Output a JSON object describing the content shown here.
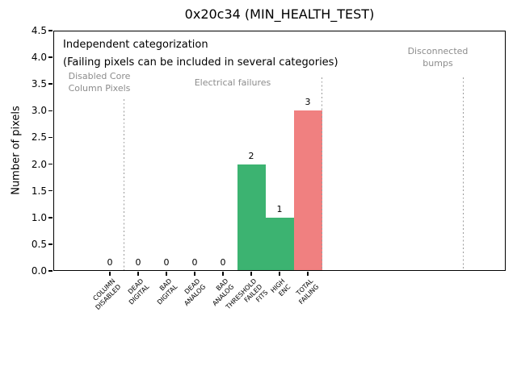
{
  "title": "0x20c34 (MIN_HEALTH_TEST)",
  "annotation": {
    "line1": "Independent categorization",
    "line2": "(Failing pixels can be included in several categories)"
  },
  "sections": [
    {
      "label": "Disabled Core\nColumn Pixels"
    },
    {
      "label": "Electrical failures"
    },
    {
      "label": "Disconnected\nbumps"
    }
  ],
  "chart_data": {
    "type": "bar",
    "title": "0x20c34 (MIN_HEALTH_TEST)",
    "xlabel": "",
    "ylabel": "Number of pixels",
    "categories": [
      "COLUMN\nDISABLED",
      "DEAD\nDIGITAL",
      "BAD\nDIGITAL",
      "DEAD\nANALOG",
      "BAD\nANALOG",
      "THRESHOLD\nFAILED\nFITS",
      "HIGH\nENC",
      "TOTAL\nFAILING"
    ],
    "values": [
      0,
      0,
      0,
      0,
      0,
      2,
      1,
      3
    ],
    "value_labels": [
      "0",
      "0",
      "0",
      "0",
      "0",
      "2",
      "1",
      "3"
    ],
    "bar_colors": [
      "#3cb371",
      "#3cb371",
      "#3cb371",
      "#3cb371",
      "#3cb371",
      "#3cb371",
      "#3cb371",
      "#f08080"
    ],
    "ylim": [
      0,
      4.5
    ],
    "ytick_step": 0.5,
    "xlim": [
      -2,
      14
    ],
    "grid": false,
    "legend": null,
    "separators_x": [
      0.5,
      7.5,
      12.5
    ],
    "annotations": [
      "Independent categorization",
      "(Failing pixels can be included in several categories)",
      "Disabled Core\nColumn Pixels",
      "Electrical failures",
      "Disconnected\nbumps"
    ],
    "colors": {
      "pass_bar": "#3cb371",
      "fail_bar": "#f08080",
      "section_text": "#8c8c8c",
      "separator": "#9a9a9a"
    }
  }
}
